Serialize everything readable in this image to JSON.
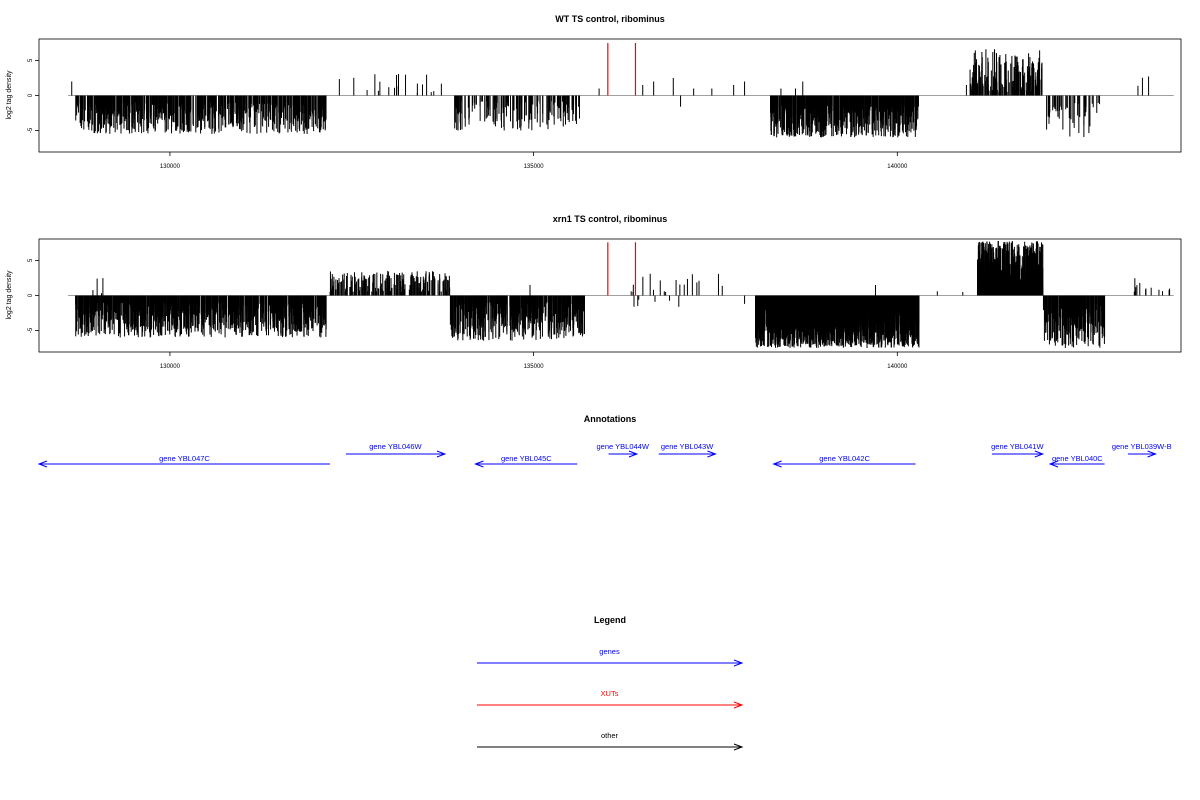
{
  "chart_data": [
    {
      "type": "bar",
      "title": "WT TS control, ribominus",
      "xlabel": "",
      "ylabel": "log2 tag density",
      "xlim": [
        128200,
        143900
      ],
      "ylim": [
        -8,
        8
      ],
      "xticks": [
        130000,
        135000,
        140000
      ],
      "yticks": [
        -5,
        0,
        5
      ],
      "grid": false,
      "baseline_color": "#808080",
      "colors": {
        "positive": "#000000",
        "negative": "#000000",
        "xut": "#ff0000"
      },
      "blocks": [
        {
          "strand": "minus",
          "start": 128700,
          "end": 132150,
          "density": 1.9,
          "range": [
            1.0,
            5.5
          ]
        },
        {
          "strand": "plus",
          "start": 132250,
          "end": 133850,
          "density": 0.12,
          "range": [
            0.3,
            3.2
          ]
        },
        {
          "strand": "minus",
          "start": 133900,
          "end": 135650,
          "density": 0.9,
          "range": [
            0.8,
            5.0
          ]
        },
        {
          "strand": "minus",
          "start": 138250,
          "end": 140300,
          "density": 3.0,
          "range": [
            1.5,
            6.0
          ]
        },
        {
          "strand": "plus",
          "start": 141000,
          "end": 142000,
          "density": 1.6,
          "range": [
            0.5,
            6.7
          ]
        },
        {
          "strand": "minus",
          "start": 142050,
          "end": 142800,
          "density": 0.6,
          "range": [
            1.0,
            6.0
          ]
        },
        {
          "strand": "plus",
          "start": 143150,
          "end": 143750,
          "density": 0.05,
          "range": [
            1.0,
            3.2
          ]
        }
      ],
      "extra_bars": [
        {
          "x": 128650,
          "y": 2.0
        },
        {
          "x": 135900,
          "y": 1.0
        },
        {
          "x": 136500,
          "y": 1.5
        },
        {
          "x": 136650,
          "y": 2.0
        },
        {
          "x": 136920,
          "y": 2.5
        },
        {
          "x": 137020,
          "y": -1.6
        },
        {
          "x": 137200,
          "y": 1.0
        },
        {
          "x": 137450,
          "y": 1.0
        },
        {
          "x": 137750,
          "y": 1.5
        },
        {
          "x": 137900,
          "y": 2.0
        },
        {
          "x": 138400,
          "y": 1.0
        },
        {
          "x": 138600,
          "y": 1.0
        },
        {
          "x": 138700,
          "y": 2.0
        },
        {
          "x": 140950,
          "y": 1.5
        }
      ],
      "xut_bars": [
        {
          "x": 136020,
          "y": 7.5
        },
        {
          "x": 136400,
          "y": 7.5
        }
      ]
    },
    {
      "type": "bar",
      "title": "xrn1 TS control, ribominus",
      "xlabel": "",
      "ylabel": "log2 tag density",
      "xlim": [
        128200,
        143900
      ],
      "ylim": [
        -8,
        8
      ],
      "xticks": [
        130000,
        135000,
        140000
      ],
      "yticks": [
        -5,
        0,
        5
      ],
      "grid": false,
      "baseline_color": "#808080",
      "colors": {
        "positive": "#000000",
        "negative": "#000000",
        "xut": "#ff0000"
      },
      "blocks": [
        {
          "strand": "minus",
          "start": 128700,
          "end": 132150,
          "density": 2.8,
          "range": [
            1.0,
            6.0
          ]
        },
        {
          "strand": "plus",
          "start": 128700,
          "end": 129100,
          "density": 0.1,
          "range": [
            0.3,
            2.5
          ]
        },
        {
          "strand": "plus",
          "start": 132200,
          "end": 133850,
          "density": 1.2,
          "range": [
            0.5,
            3.5
          ]
        },
        {
          "strand": "minus",
          "start": 133850,
          "end": 135700,
          "density": 2.8,
          "range": [
            1.0,
            6.5
          ]
        },
        {
          "strand": "plus",
          "start": 136300,
          "end": 137800,
          "density": 0.12,
          "range": [
            0.5,
            3.4
          ]
        },
        {
          "strand": "minus",
          "start": 136300,
          "end": 137500,
          "density": 0.04,
          "range": [
            0.5,
            1.8
          ]
        },
        {
          "strand": "minus",
          "start": 138050,
          "end": 140300,
          "density": 7.0,
          "range": [
            2.0,
            7.5
          ]
        },
        {
          "strand": "plus",
          "start": 141100,
          "end": 142000,
          "density": 6.0,
          "range": [
            1.0,
            7.8
          ]
        },
        {
          "strand": "minus",
          "start": 142000,
          "end": 142850,
          "density": 3.0,
          "range": [
            1.0,
            7.5
          ]
        },
        {
          "strand": "plus",
          "start": 143150,
          "end": 143800,
          "density": 0.2,
          "range": [
            0.5,
            2.5
          ]
        }
      ],
      "extra_bars": [
        {
          "x": 134950,
          "y": 1.5
        },
        {
          "x": 139700,
          "y": 1.5
        },
        {
          "x": 140550,
          "y": 0.6
        },
        {
          "x": 140900,
          "y": 0.5
        },
        {
          "x": 137900,
          "y": -1.2
        },
        {
          "x": 136380,
          "y": -1.6
        }
      ],
      "xut_bars": [
        {
          "x": 136020,
          "y": 7.6
        },
        {
          "x": 136400,
          "y": 7.6
        }
      ]
    }
  ],
  "annotations": {
    "title": "Annotations",
    "genes": [
      {
        "label": "gene YBL047C",
        "start": 128200,
        "end": 132200,
        "strand": "minus",
        "row": "low"
      },
      {
        "label": "gene YBL046W",
        "start": 132420,
        "end": 133780,
        "strand": "plus",
        "row": "high"
      },
      {
        "label": "gene YBL045C",
        "start": 134200,
        "end": 135600,
        "strand": "minus",
        "row": "low"
      },
      {
        "label": "gene YBL044W",
        "start": 136030,
        "end": 136420,
        "strand": "plus",
        "row": "high"
      },
      {
        "label": "gene YBL043W",
        "start": 136720,
        "end": 137500,
        "strand": "plus",
        "row": "high"
      },
      {
        "label": "gene YBL042C",
        "start": 138300,
        "end": 140250,
        "strand": "minus",
        "row": "low"
      },
      {
        "label": "gene YBL041W",
        "start": 141300,
        "end": 142000,
        "strand": "plus",
        "row": "high"
      },
      {
        "label": "gene YBL040C",
        "start": 142100,
        "end": 142850,
        "strand": "minus",
        "row": "low"
      },
      {
        "label": "gene YBL039W-B",
        "start": 143170,
        "end": 143550,
        "strand": "plus",
        "row": "high"
      }
    ]
  },
  "legend": {
    "title": "Legend",
    "items": [
      {
        "label": "genes",
        "color": "#0000ff"
      },
      {
        "label": "XUTs",
        "color": "#ff0000"
      },
      {
        "label": "other",
        "color": "#000000"
      }
    ]
  }
}
